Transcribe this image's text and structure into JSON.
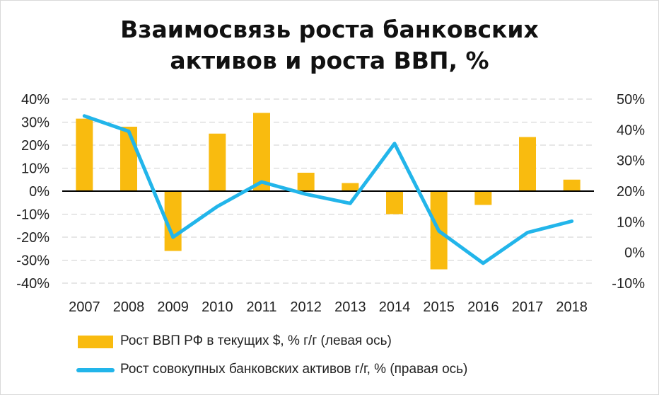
{
  "chart_data": {
    "type": "bar+line",
    "title_lines": [
      "Взаимосвязь роста банковских",
      "активов и роста ВВП, %"
    ],
    "categories": [
      "2007",
      "2008",
      "2009",
      "2010",
      "2011",
      "2012",
      "2013",
      "2014",
      "2015",
      "2016",
      "2017",
      "2018"
    ],
    "left_axis": {
      "ylim": [
        -40,
        40
      ],
      "ticks": [
        "40%",
        "30%",
        "20%",
        "10%",
        "0%",
        "-10%",
        "-20%",
        "-30%",
        "-40%"
      ]
    },
    "right_axis": {
      "ylim": [
        -10,
        50
      ],
      "ticks": [
        "50%",
        "40%",
        "30%",
        "20%",
        "10%",
        "0%",
        "-10%"
      ]
    },
    "series": [
      {
        "name": "Рост ВВП РФ в текущих $, % г/г (левая ось)",
        "type": "bar",
        "axis": "left",
        "color": "#f9bb0f",
        "values": [
          31.5,
          28,
          -26,
          25,
          34,
          8,
          3.5,
          -10,
          -34,
          -6,
          23.5,
          5
        ]
      },
      {
        "name": "Рост совокупных банковских активов г/г, % (правая ось)",
        "type": "line",
        "axis": "right",
        "color": "#22b5ea",
        "values": [
          44.5,
          39.5,
          5,
          15,
          23,
          19,
          16,
          35.5,
          7,
          -3.5,
          6.5,
          10.2
        ]
      }
    ],
    "grid": "horizontal dashed",
    "legend_position": "bottom"
  }
}
